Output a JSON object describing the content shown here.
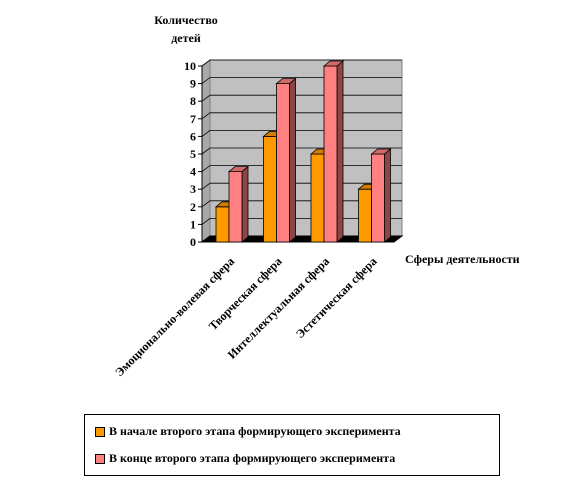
{
  "chart_data": {
    "type": "bar",
    "ylabel_lines": [
      "Количество",
      "детей"
    ],
    "xlabel": "Сферы деятельности",
    "categories": [
      "Эмоционально-волевая сфера",
      "Творческая сфера",
      "Интеллектуальная сфера",
      "Эстетическая сфера"
    ],
    "series": [
      {
        "name": "В начале второго этапа формирующего эксперимента",
        "values": [
          2,
          6,
          5,
          3
        ],
        "color": "#ff9900"
      },
      {
        "name": "В конце второго этапа формирующего эксперимента",
        "values": [
          4,
          9,
          10,
          5
        ],
        "color": "#ff8080"
      }
    ],
    "ylim": [
      0,
      10
    ],
    "yticks": [
      0,
      1,
      2,
      3,
      4,
      5,
      6,
      7,
      8,
      9,
      10
    ],
    "grid": true,
    "legend_position": "bottom",
    "wall_color": "#c0c0c0",
    "floor_color": "#000000"
  }
}
